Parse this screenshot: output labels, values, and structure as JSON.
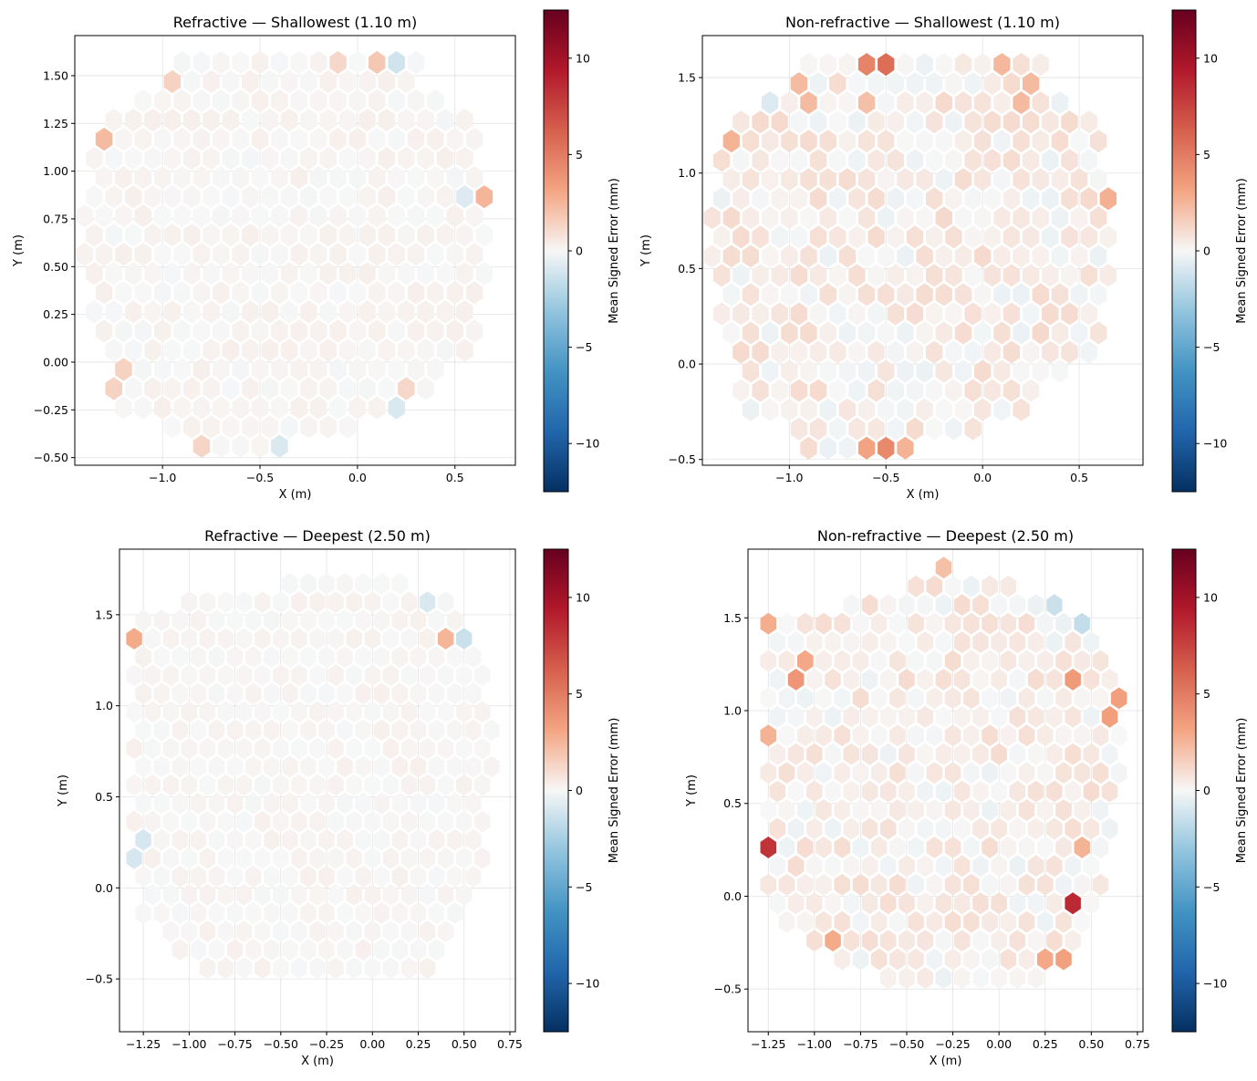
{
  "figure": {
    "colormap": "RdBu_r",
    "background": "#ffffff"
  },
  "chart_data": [
    {
      "type": "hexbin",
      "title": "Refractive — Shallowest (1.10 m)",
      "xlabel": "X (m)",
      "ylabel": "Y (m)",
      "xlim": [
        -1.45,
        0.81
      ],
      "ylim": [
        -0.54,
        1.71
      ],
      "xticks": [
        -1.0,
        -0.5,
        0.0,
        0.5
      ],
      "xtick_labels": [
        "−1.0",
        "−0.5",
        "0.0",
        "0.5"
      ],
      "yticks": [
        -0.5,
        -0.25,
        0.0,
        0.25,
        0.5,
        0.75,
        1.0,
        1.25,
        1.5
      ],
      "ytick_labels": [
        "−0.50",
        "−0.25",
        "0.00",
        "0.25",
        "0.50",
        "0.75",
        "1.00",
        "1.25",
        "1.50"
      ],
      "grid": true,
      "colorbar": {
        "label": "Mean Signed Error (mm)",
        "vmin": -12.5,
        "vmax": 12.5,
        "ticks": [
          -10,
          -5,
          0,
          5,
          10
        ],
        "tick_labels": [
          "−10",
          "−5",
          "0",
          "5",
          "10"
        ]
      },
      "shape": {
        "rows": [
          [
            -0.44,
            -0.88,
            -0.32
          ],
          [
            -0.34,
            -1.0,
            0.0
          ],
          [
            -0.24,
            -1.22,
            0.25
          ],
          [
            -0.04,
            -1.28,
            0.48
          ],
          [
            0.06,
            -1.3,
            0.6
          ],
          [
            0.16,
            -1.34,
            0.62
          ],
          [
            0.36,
            -1.36,
            0.66
          ],
          [
            0.56,
            -1.4,
            0.7
          ],
          [
            0.76,
            -1.4,
            0.7
          ],
          [
            0.96,
            -1.4,
            0.62
          ],
          [
            1.16,
            -1.32,
            0.62
          ],
          [
            1.32,
            -1.24,
            0.56
          ],
          [
            1.46,
            -1.0,
            0.3
          ],
          [
            1.6,
            -0.88,
            0.32
          ]
        ]
      },
      "base": 0.3,
      "hotspots": [
        {
          "x": -1.3,
          "y": 1.16,
          "v": 2.3
        },
        {
          "x": 0.62,
          "y": 0.86,
          "v": 2.5
        },
        {
          "x": 0.1,
          "y": 1.6,
          "v": 1.8
        },
        {
          "x": 0.2,
          "y": 1.6,
          "v": -1.2
        },
        {
          "x": -0.98,
          "y": 1.44,
          "v": 1.4
        },
        {
          "x": -0.78,
          "y": -0.44,
          "v": 1.3
        },
        {
          "x": -1.24,
          "y": -0.08,
          "v": 1.4
        },
        {
          "x": 0.58,
          "y": -0.22,
          "v": 1.6
        },
        {
          "x": 0.26,
          "y": -0.16,
          "v": 1.2
        },
        {
          "x": -0.4,
          "y": -0.44,
          "v": -0.9
        },
        {
          "x": 0.16,
          "y": -0.22,
          "v": -0.9
        },
        {
          "x": 0.52,
          "y": -0.16,
          "v": -0.8
        },
        {
          "x": 0.58,
          "y": 0.9,
          "v": -0.8
        },
        {
          "x": -0.1,
          "y": 1.6,
          "v": 1.2
        }
      ]
    },
    {
      "type": "hexbin",
      "title": "Non-refractive — Shallowest (1.10 m)",
      "xlabel": "X (m)",
      "ylabel": "Y (m)",
      "xlim": [
        -1.45,
        0.83
      ],
      "ylim": [
        -0.53,
        1.72
      ],
      "xticks": [
        -1.0,
        -0.5,
        0.0,
        0.5
      ],
      "xtick_labels": [
        "−1.0",
        "−0.5",
        "0.0",
        "0.5"
      ],
      "yticks": [
        -0.5,
        0.0,
        0.5,
        1.0,
        1.5
      ],
      "ytick_labels": [
        "−0.5",
        "0.0",
        "0.5",
        "1.0",
        "1.5"
      ],
      "grid": true,
      "colorbar": {
        "label": "Mean Signed Error (mm)",
        "vmin": -12.5,
        "vmax": 12.5,
        "ticks": [
          -10,
          -5,
          0,
          5,
          10
        ],
        "tick_labels": [
          "−10",
          "−5",
          "0",
          "5",
          "10"
        ]
      },
      "shape": {
        "rows": [
          [
            -0.44,
            -0.92,
            -0.3
          ],
          [
            -0.34,
            -1.0,
            0.0
          ],
          [
            -0.24,
            -1.22,
            0.2
          ],
          [
            -0.04,
            -1.28,
            0.42
          ],
          [
            0.06,
            -1.3,
            0.6
          ],
          [
            0.16,
            -1.34,
            0.62
          ],
          [
            0.36,
            -1.36,
            0.66
          ],
          [
            0.56,
            -1.4,
            0.7
          ],
          [
            0.76,
            -1.4,
            0.7
          ],
          [
            0.96,
            -1.4,
            0.62
          ],
          [
            1.16,
            -1.32,
            0.62
          ],
          [
            1.32,
            -1.24,
            0.56
          ],
          [
            1.46,
            -1.0,
            0.3
          ],
          [
            1.6,
            -0.88,
            0.32
          ]
        ]
      },
      "base": 1.1,
      "hotspots": [
        {
          "x": -0.46,
          "y": 1.62,
          "v": 5.6
        },
        {
          "x": -0.56,
          "y": 1.62,
          "v": 4.6
        },
        {
          "x": -0.46,
          "y": -0.44,
          "v": 4.4
        },
        {
          "x": -0.56,
          "y": -0.44,
          "v": 3.2
        },
        {
          "x": 0.64,
          "y": 1.04,
          "v": 3.0
        },
        {
          "x": 0.62,
          "y": 0.88,
          "v": 2.7
        },
        {
          "x": -1.3,
          "y": 1.18,
          "v": 2.6
        },
        {
          "x": 0.14,
          "y": 1.62,
          "v": 2.4
        },
        {
          "x": -0.92,
          "y": 1.42,
          "v": 2.3
        },
        {
          "x": 0.24,
          "y": 1.42,
          "v": 2.3
        },
        {
          "x": -0.36,
          "y": -0.44,
          "v": 2.6
        },
        {
          "x": 0.52,
          "y": -0.14,
          "v": -1.4
        },
        {
          "x": -1.14,
          "y": 1.34,
          "v": -0.8
        },
        {
          "x": -0.58,
          "y": 1.4,
          "v": 2.1
        }
      ]
    },
    {
      "type": "hexbin",
      "title": "Refractive — Deepest (2.50 m)",
      "xlabel": "X (m)",
      "ylabel": "Y (m)",
      "xlim": [
        -1.38,
        0.78
      ],
      "ylim": [
        -0.79,
        1.86
      ],
      "xticks": [
        -1.25,
        -1.0,
        -0.75,
        -0.5,
        -0.25,
        0.0,
        0.25,
        0.5,
        0.75
      ],
      "xtick_labels": [
        "−1.25",
        "−1.00",
        "−0.75",
        "−0.50",
        "−0.25",
        "0.00",
        "0.25",
        "0.50",
        "0.75"
      ],
      "yticks": [
        -0.5,
        0.0,
        0.5,
        1.0,
        1.5
      ],
      "ytick_labels": [
        "−0.5",
        "0.0",
        "0.5",
        "1.0",
        "1.5"
      ],
      "grid": true,
      "colorbar": {
        "label": "Mean Signed Error (mm)",
        "vmin": -12.5,
        "vmax": 12.5,
        "ticks": [
          -10,
          -5,
          0,
          5,
          10
        ],
        "tick_labels": [
          "−10",
          "−5",
          "0",
          "5",
          "10"
        ]
      },
      "shape": {
        "rows": [
          [
            -0.66,
            -0.04,
            0.22
          ],
          [
            -0.54,
            -0.5,
            0.22
          ],
          [
            -0.42,
            -1.04,
            0.4
          ],
          [
            -0.18,
            -1.24,
            0.48
          ],
          [
            0.0,
            -1.3,
            0.56
          ],
          [
            0.2,
            -1.3,
            0.62
          ],
          [
            0.42,
            -1.3,
            0.64
          ],
          [
            0.64,
            -1.3,
            0.68
          ],
          [
            0.88,
            -1.3,
            0.68
          ],
          [
            1.1,
            -1.3,
            0.64
          ],
          [
            1.32,
            -1.3,
            0.6
          ],
          [
            1.52,
            -1.3,
            0.52
          ],
          [
            1.64,
            -0.6,
            0.34
          ],
          [
            1.74,
            -0.36,
            -0.22
          ]
        ]
      },
      "base": 0.25,
      "hotspots": [
        {
          "x": -1.28,
          "y": 1.4,
          "v": 2.9
        },
        {
          "x": 0.45,
          "y": 1.4,
          "v": 2.5
        },
        {
          "x": -0.35,
          "y": 1.74,
          "v": 1.8
        },
        {
          "x": -0.25,
          "y": 1.74,
          "v": 1.6
        },
        {
          "x": 0.52,
          "y": 1.4,
          "v": -1.4
        },
        {
          "x": 0.3,
          "y": 1.58,
          "v": -0.9
        },
        {
          "x": -1.28,
          "y": 0.22,
          "v": -1.0
        },
        {
          "x": 0.1,
          "y": -0.66,
          "v": -0.8
        },
        {
          "x": -0.92,
          "y": 1.64,
          "v": 1.2
        },
        {
          "x": 0.2,
          "y": -0.66,
          "v": 0.9
        }
      ]
    },
    {
      "type": "hexbin",
      "title": "Non-refractive — Deepest (2.50 m)",
      "xlabel": "X (m)",
      "ylabel": "Y (m)",
      "xlim": [
        -1.36,
        0.78
      ],
      "ylim": [
        -0.73,
        1.87
      ],
      "xticks": [
        -1.25,
        -1.0,
        -0.75,
        -0.5,
        -0.25,
        0.0,
        0.25,
        0.5,
        0.75
      ],
      "xtick_labels": [
        "−1.25",
        "−1.00",
        "−0.75",
        "−0.50",
        "−0.25",
        "0.00",
        "0.25",
        "0.50",
        "0.75"
      ],
      "yticks": [
        -0.5,
        0.0,
        0.5,
        1.0,
        1.5
      ],
      "ytick_labels": [
        "−0.5",
        "0.0",
        "0.5",
        "1.0",
        "1.5"
      ],
      "grid": true,
      "colorbar": {
        "label": "Mean Signed Error (mm)",
        "vmin": -12.5,
        "vmax": 12.5,
        "ticks": [
          -10,
          -5,
          0,
          5,
          10
        ],
        "tick_labels": [
          "−10",
          "−5",
          "0",
          "5",
          "10"
        ]
      },
      "shape": {
        "rows": [
          [
            -0.62,
            -0.04,
            0.22
          ],
          [
            -0.48,
            -0.5,
            0.22
          ],
          [
            -0.36,
            -0.92,
            0.44
          ],
          [
            -0.12,
            -1.24,
            0.48
          ],
          [
            0.06,
            -1.28,
            0.56
          ],
          [
            0.26,
            -1.28,
            0.6
          ],
          [
            0.48,
            -1.28,
            0.62
          ],
          [
            0.72,
            -1.28,
            0.66
          ],
          [
            0.92,
            -1.28,
            0.7
          ],
          [
            1.14,
            -1.28,
            0.64
          ],
          [
            1.34,
            -1.28,
            0.6
          ],
          [
            1.5,
            -1.28,
            0.5
          ],
          [
            1.62,
            -0.6,
            0.32
          ],
          [
            1.78,
            -0.34,
            -0.24
          ]
        ]
      },
      "base": 1.0,
      "hotspots": [
        {
          "x": -1.26,
          "y": 0.24,
          "v": 8.2
        },
        {
          "x": 0.42,
          "y": -0.02,
          "v": 8.6
        },
        {
          "x": 0.42,
          "y": -0.36,
          "v": 4.2
        },
        {
          "x": 0.34,
          "y": -0.3,
          "v": 3.3
        },
        {
          "x": 0.24,
          "y": -0.36,
          "v": 3.0
        },
        {
          "x": -1.06,
          "y": 1.18,
          "v": 3.8
        },
        {
          "x": -1.02,
          "y": 1.26,
          "v": 3.0
        },
        {
          "x": 0.42,
          "y": 1.18,
          "v": 3.6
        },
        {
          "x": 0.64,
          "y": 1.02,
          "v": 3.4
        },
        {
          "x": -1.26,
          "y": 1.44,
          "v": 2.8
        },
        {
          "x": -1.26,
          "y": 0.84,
          "v": 2.6
        },
        {
          "x": -0.94,
          "y": -0.28,
          "v": 2.9
        },
        {
          "x": 0.46,
          "y": 1.44,
          "v": -1.6
        },
        {
          "x": 0.3,
          "y": 1.62,
          "v": -1.4
        },
        {
          "x": -0.34,
          "y": 1.78,
          "v": 2.1
        },
        {
          "x": 0.44,
          "y": 0.24,
          "v": 2.6
        },
        {
          "x": -1.02,
          "y": 1.58,
          "v": -0.9
        },
        {
          "x": 0.16,
          "y": -0.62,
          "v": 2.0
        },
        {
          "x": 0.04,
          "y": -0.62,
          "v": -1.0
        },
        {
          "x": -0.22,
          "y": 1.78,
          "v": 1.9
        }
      ]
    }
  ]
}
